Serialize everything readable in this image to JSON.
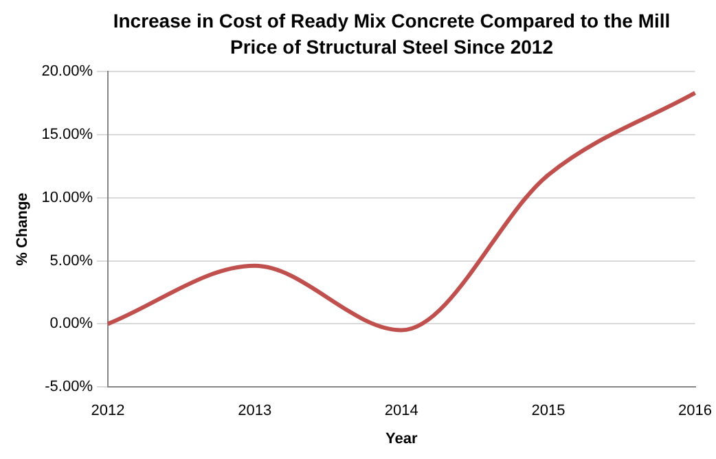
{
  "chart_data": {
    "type": "line",
    "title": "Increase in Cost of Ready Mix Concrete Compared to the Mill Price of Structural Steel Since 2012",
    "xlabel": "Year",
    "ylabel": "% Change",
    "categories": [
      "2012",
      "2013",
      "2014",
      "2015",
      "2016"
    ],
    "series": [
      {
        "color": "#c0504d",
        "values": [
          0,
          4.6,
          -0.5,
          11.8,
          18.3
        ]
      }
    ],
    "ylim": [
      -5,
      20
    ],
    "yticks": [
      {
        "value": -5,
        "label": "-5.00%"
      },
      {
        "value": 0,
        "label": "0.00%"
      },
      {
        "value": 5,
        "label": "5.00%"
      },
      {
        "value": 10,
        "label": "10.00%"
      },
      {
        "value": 15,
        "label": "15.00%"
      },
      {
        "value": 20,
        "label": "20.00%"
      }
    ],
    "grid": "y",
    "legend": false,
    "marker": "none",
    "line_style": "solid"
  }
}
